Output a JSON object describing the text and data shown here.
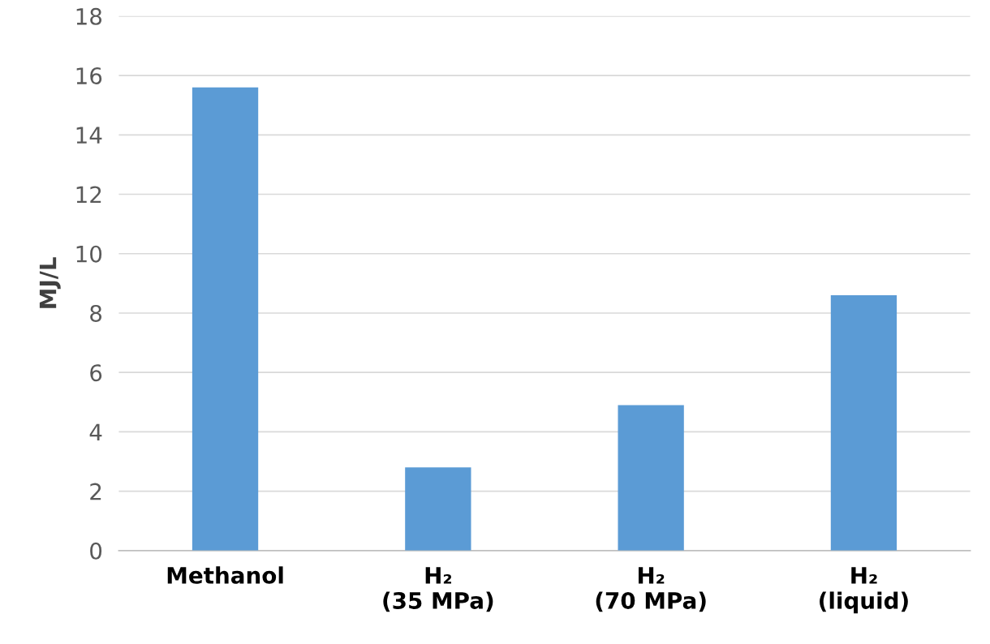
{
  "chart_data": {
    "type": "bar",
    "ylabel": "MJ/L",
    "categories": [
      "Methanol",
      "H₂\n(35 MPa)",
      "H₂\n(70 MPa)",
      "H₂\n(liquid)"
    ],
    "values": [
      15.6,
      2.8,
      4.9,
      8.6
    ],
    "color": "#5b9bd5",
    "ylim": [
      0,
      18
    ],
    "yticks": [
      0,
      2,
      4,
      6,
      8,
      10,
      12,
      14,
      16,
      18
    ],
    "grid": "y"
  }
}
